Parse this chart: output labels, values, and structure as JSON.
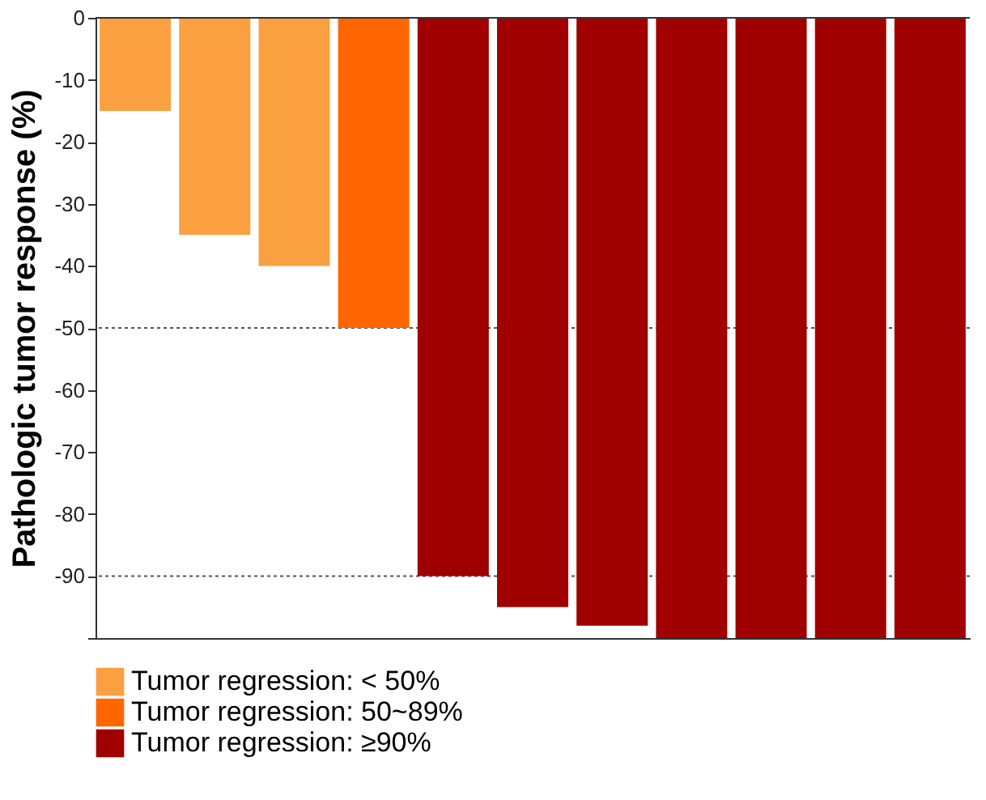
{
  "chart_data": {
    "type": "bar",
    "ylabel": "Pathologic tumor response (%)",
    "categories": [
      null,
      null,
      null,
      null,
      null,
      null,
      null,
      null,
      null,
      null,
      null
    ],
    "series": [
      {
        "name": "Tumor regression: < 50%",
        "color": "#fba040",
        "values": [
          -15,
          -35,
          -40,
          null,
          null,
          null,
          null,
          null,
          null,
          null,
          null
        ]
      },
      {
        "name": "Tumor regression: 50~89%",
        "color": "#ff6600",
        "values": [
          null,
          null,
          null,
          -50,
          null,
          null,
          null,
          null,
          null,
          null,
          null
        ]
      },
      {
        "name": "Tumor regression: ≥90%",
        "color": "#a00000",
        "values": [
          null,
          null,
          null,
          null,
          -90,
          -95,
          -98,
          -100,
          -100,
          -100,
          -100
        ]
      }
    ],
    "ylim": [
      -100,
      0
    ],
    "yticks": [
      0,
      -10,
      -20,
      -30,
      -40,
      -50,
      -60,
      -70,
      -80,
      -90,
      {
        "value": -100,
        "label": null
      }
    ],
    "ref_lines": [
      {
        "axis": "y",
        "value": 0,
        "line_style": "solid",
        "color": "#333333"
      },
      {
        "axis": "y",
        "value": -50,
        "line_style": "dotted",
        "color": "#555555"
      },
      {
        "axis": "y",
        "value": -90,
        "line_style": "dotted",
        "color": "#555555"
      }
    ],
    "grid": false,
    "legend": "bottom"
  }
}
